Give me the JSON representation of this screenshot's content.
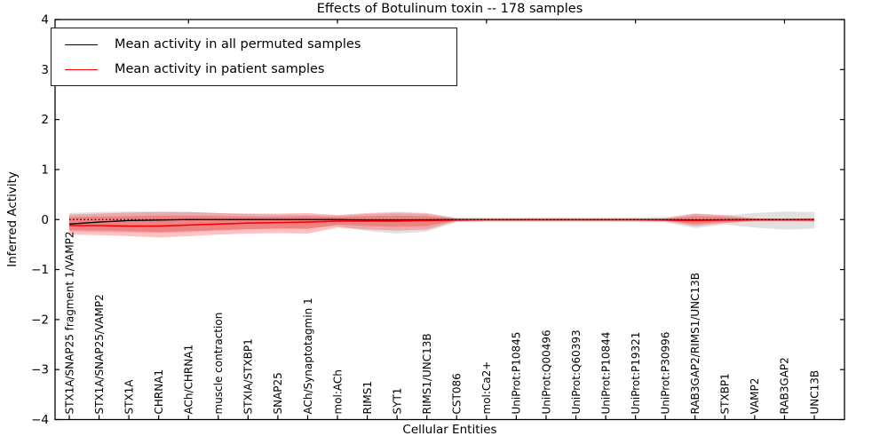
{
  "chart_data": {
    "type": "line",
    "title": "Effects of Botulinum toxin -- 178 samples",
    "xlabel": "Cellular Entities",
    "ylabel": "Inferred Activity",
    "ylim": [
      -4,
      4
    ],
    "yticks": [
      4,
      3,
      2,
      1,
      0,
      -1,
      -2,
      -3,
      -4
    ],
    "grid": false,
    "legend_position": "upper left",
    "zero_line": {
      "style": "dotted",
      "color": "#000000",
      "value": 0
    },
    "categories": [
      "STX1A/SNAP25 fragment 1/VAMP2",
      "STX1A/SNAP25/VAMP2",
      "STX1A",
      "CHRNA1",
      "ACh/CHRNA1",
      "muscle contraction",
      "STXIA/STXBP1",
      "SNAP25",
      "ACh/Synaptotagmin 1",
      "mol:ACh",
      "RIMS1",
      "SYT1",
      "RIMS1/UNC13B",
      "CST086",
      "mol:Ca2+",
      "UniProt:P10845",
      "UniProt:Q00496",
      "UniProt:Q60393",
      "UniProt:P10844",
      "UniProt:P19321",
      "UniProt:P30996",
      "RAB3GAP2/RIMS1/UNC13B",
      "STXBP1",
      "VAMP2",
      "RAB3GAP2",
      "UNC13B"
    ],
    "top_tick_indices": [
      4,
      9,
      14,
      19,
      24
    ],
    "series": [
      {
        "name": "Mean activity in all permuted samples",
        "color": "#000000",
        "width": 1.3,
        "values": [
          -0.09,
          -0.05,
          -0.02,
          -0.01,
          0,
          0,
          0,
          0,
          0,
          0,
          -0.01,
          -0.01,
          -0.005,
          0,
          0,
          0,
          0,
          0,
          0,
          0,
          0,
          -0.01,
          -0.005,
          0,
          0,
          0
        ]
      },
      {
        "name": "Mean activity in patient samples",
        "color": "#ff0000",
        "width": 1.6,
        "values": [
          -0.12,
          -0.12,
          -0.13,
          -0.13,
          -0.11,
          -0.09,
          -0.07,
          -0.06,
          -0.05,
          -0.03,
          -0.03,
          -0.03,
          -0.02,
          -0.01,
          -0.005,
          -0.005,
          -0.005,
          -0.005,
          -0.005,
          -0.005,
          -0.01,
          -0.02,
          -0.01,
          -0.005,
          -0.005,
          -0.005
        ]
      }
    ],
    "bands": [
      {
        "name": "permuted-samples-range",
        "color": "#bdbdbd",
        "opacity": 0.45,
        "upper": [
          0.13,
          0.15,
          0.16,
          0.16,
          0.15,
          0.13,
          0.11,
          0.1,
          0.1,
          0.08,
          0.11,
          0.13,
          0.11,
          0.045,
          0.04,
          0.04,
          0.04,
          0.04,
          0.04,
          0.045,
          0.05,
          0.12,
          0.08,
          0.13,
          0.16,
          0.15
        ],
        "lower": [
          -0.24,
          -0.25,
          -0.26,
          -0.27,
          -0.25,
          -0.22,
          -0.2,
          -0.18,
          -0.17,
          -0.13,
          -0.23,
          -0.28,
          -0.24,
          -0.05,
          -0.045,
          -0.045,
          -0.045,
          -0.045,
          -0.045,
          -0.05,
          -0.055,
          -0.17,
          -0.1,
          -0.16,
          -0.2,
          -0.18
        ]
      },
      {
        "name": "patient-samples-range-outer",
        "color": "#ff1a1a",
        "opacity": 0.27,
        "upper": [
          0.1,
          0.12,
          0.14,
          0.15,
          0.15,
          0.13,
          0.12,
          0.12,
          0.13,
          0.09,
          0.13,
          0.15,
          0.13,
          0.02,
          0.015,
          0.015,
          0.015,
          0.015,
          0.015,
          0.015,
          0.02,
          0.12,
          0.09,
          0.025,
          0.02,
          0.03
        ],
        "lower": [
          -0.3,
          -0.31,
          -0.33,
          -0.36,
          -0.33,
          -0.3,
          -0.28,
          -0.27,
          -0.28,
          -0.16,
          -0.2,
          -0.22,
          -0.2,
          -0.03,
          -0.02,
          -0.02,
          -0.02,
          -0.02,
          -0.02,
          -0.02,
          -0.03,
          -0.13,
          -0.07,
          -0.035,
          -0.03,
          -0.04
        ],
        "legend": false
      },
      {
        "name": "patient-samples-range-inner",
        "color": "#ff1a1a",
        "opacity": 0.27,
        "upper": [
          0.05,
          0.06,
          0.07,
          0.08,
          0.08,
          0.07,
          0.06,
          0.06,
          0.07,
          0.05,
          0.07,
          0.08,
          0.07,
          0.012,
          0.008,
          0.008,
          0.008,
          0.008,
          0.008,
          0.008,
          0.012,
          0.07,
          0.05,
          0.015,
          0.012,
          0.018
        ],
        "lower": [
          -0.21,
          -0.22,
          -0.23,
          -0.25,
          -0.23,
          -0.21,
          -0.19,
          -0.18,
          -0.19,
          -0.1,
          -0.13,
          -0.14,
          -0.13,
          -0.02,
          -0.012,
          -0.012,
          -0.012,
          -0.012,
          -0.012,
          -0.012,
          -0.02,
          -0.09,
          -0.045,
          -0.022,
          -0.018,
          -0.025
        ],
        "legend": false
      }
    ],
    "legend": {
      "items": [
        {
          "label": "Mean activity in all permuted samples",
          "color": "#000000"
        },
        {
          "label": "Mean activity in patient samples",
          "color": "#ff0000"
        }
      ]
    }
  }
}
